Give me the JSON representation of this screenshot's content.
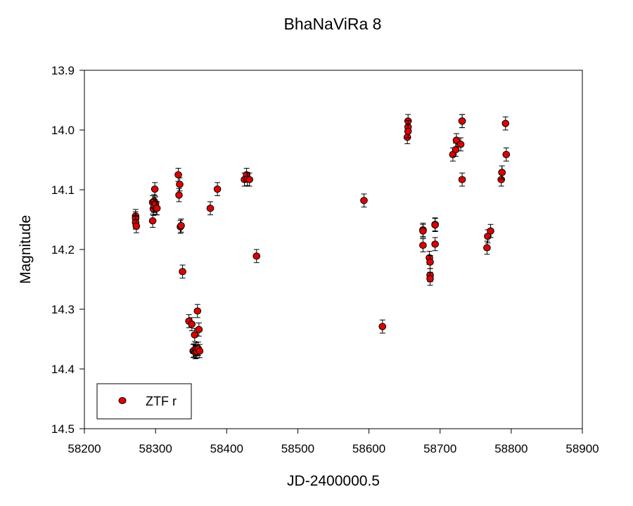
{
  "chart_data": {
    "type": "scatter",
    "title": "BhaNaViRa 8",
    "xlabel": "JD-2400000.5",
    "ylabel": "Magnitude",
    "xlim": [
      58200,
      58900
    ],
    "ylim": [
      13.9,
      14.5
    ],
    "y_inverted": true,
    "x_ticks": [
      "58200",
      "58300",
      "58400",
      "58500",
      "58600",
      "58700",
      "58800",
      "58900"
    ],
    "y_ticks": [
      "13.9",
      "14.0",
      "14.1",
      "14.2",
      "14.3",
      "14.4",
      "14.5"
    ],
    "grid": false,
    "legend_position": "bottom-left",
    "colors": {
      "marker_fill": "#e00000",
      "marker_edge": "#000000",
      "error_bar": "#000000"
    },
    "series": [
      {
        "name": "ZTF r",
        "error": 0.011,
        "x": [
          58272,
          58272,
          58272,
          58273,
          58296,
          58296,
          58297,
          58298,
          58298,
          58299,
          58300,
          58301,
          58302,
          58332,
          58333,
          58334,
          58335,
          58336,
          58338,
          58347,
          58351,
          58353,
          58354,
          58355,
          58356,
          58357,
          58358,
          58359,
          58360,
          58361,
          58362,
          58377,
          58387,
          58425,
          58428,
          58429,
          58432,
          58442,
          58593,
          58619,
          58654,
          58655,
          58655,
          58655,
          58676,
          58676,
          58676,
          58685,
          58686,
          58686,
          58686,
          58693,
          58693,
          58693,
          58718,
          58722,
          58723,
          58729,
          58731,
          58731,
          58731,
          58766,
          58767,
          58771,
          58786,
          58787,
          58787,
          58792,
          58793
        ],
        "y": [
          14.144,
          14.148,
          14.155,
          14.161,
          14.152,
          14.121,
          14.132,
          14.119,
          14.127,
          14.099,
          14.123,
          14.131,
          14.131,
          14.075,
          14.109,
          14.091,
          14.162,
          14.16,
          14.237,
          14.32,
          14.325,
          14.37,
          14.369,
          14.343,
          14.372,
          14.367,
          14.371,
          14.303,
          14.366,
          14.334,
          14.37,
          14.131,
          14.099,
          14.083,
          14.075,
          14.082,
          14.083,
          14.211,
          14.118,
          14.329,
          14.012,
          13.985,
          13.995,
          14.002,
          14.167,
          14.169,
          14.193,
          14.214,
          14.221,
          14.243,
          14.249,
          14.191,
          14.158,
          14.159,
          14.041,
          14.033,
          14.017,
          14.024,
          13.985,
          14.083,
          13.985,
          14.197,
          14.178,
          14.169,
          14.083,
          14.071,
          14.071,
          13.989,
          14.041
        ]
      }
    ]
  }
}
